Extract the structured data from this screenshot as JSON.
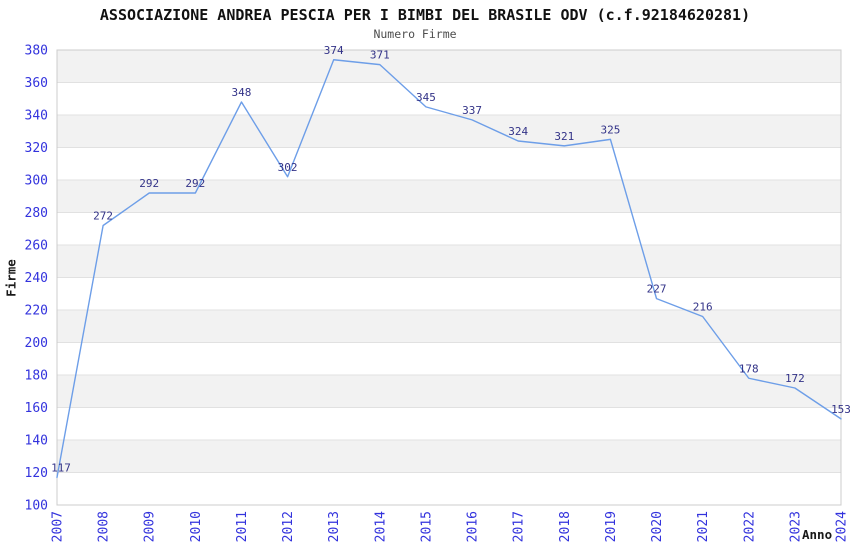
{
  "chart_data": {
    "type": "line",
    "title": "ASSOCIAZIONE ANDREA PESCIA PER I BIMBI DEL BRASILE ODV (c.f.92184620281)",
    "subtitle": "Numero Firme",
    "xlabel": "Anno",
    "ylabel": "Firme",
    "categories": [
      "2007",
      "2008",
      "2009",
      "2010",
      "2011",
      "2012",
      "2013",
      "2014",
      "2015",
      "2016",
      "2017",
      "2018",
      "2019",
      "2020",
      "2021",
      "2022",
      "2023",
      "2024"
    ],
    "values": [
      117,
      272,
      292,
      292,
      348,
      302,
      374,
      371,
      345,
      337,
      324,
      321,
      325,
      227,
      216,
      178,
      172,
      153
    ],
    "ylim": [
      100,
      380
    ],
    "ytick_step": 20,
    "grid": "horizontal",
    "legend": "none",
    "bands": "alternating horizontal, gray starts at top band 360-380",
    "colors": {
      "line": "#6d9ee8",
      "data_label": "#333388",
      "tick_label": "#3333dd",
      "band": "#f2f2f2",
      "gridline": "#e1e1e1",
      "border": "#cccccc",
      "title": "#111111",
      "subtitle": "#4d4d4d",
      "axis_label": "#1a1a1a"
    }
  }
}
